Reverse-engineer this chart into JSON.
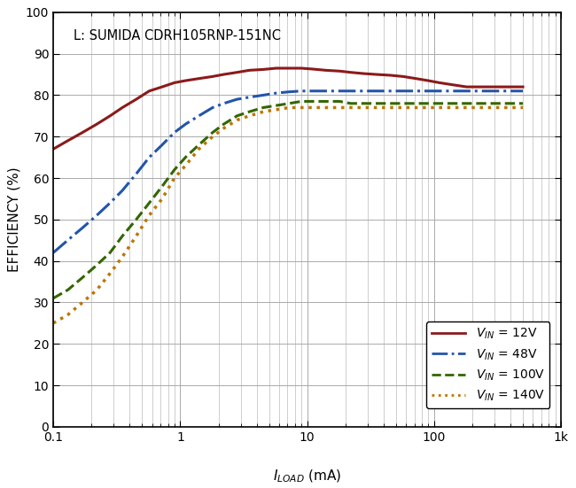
{
  "title_annotation": "L: SUMIDA CDRH105RNP-151NC",
  "ylabel": "EFFICIENCY (%)",
  "xlim": [
    0.1,
    1000
  ],
  "ylim": [
    0,
    100
  ],
  "yticks": [
    0,
    10,
    20,
    30,
    40,
    50,
    60,
    70,
    80,
    90,
    100
  ],
  "xticks_major": [
    0.1,
    1,
    10,
    100,
    1000
  ],
  "xtick_labels": [
    "0.1",
    "1",
    "10",
    "100",
    "1k"
  ],
  "background_color": "#ffffff",
  "grid_color": "#aaaaaa",
  "curves": [
    {
      "label_val": " = 12V",
      "color": "#8B1A1A",
      "linestyle": "-",
      "linewidth": 2.2,
      "x": [
        0.1,
        0.13,
        0.17,
        0.22,
        0.28,
        0.35,
        0.45,
        0.57,
        0.72,
        0.9,
        1.1,
        1.4,
        1.8,
        2.2,
        2.8,
        3.5,
        4.5,
        5.7,
        7.2,
        9,
        11,
        14,
        18,
        22,
        28,
        35,
        45,
        57,
        72,
        90,
        110,
        140,
        180,
        220,
        280,
        350,
        450,
        500
      ],
      "y": [
        67,
        69,
        71,
        73,
        75,
        77,
        79,
        81,
        82,
        83,
        83.5,
        84,
        84.5,
        85,
        85.5,
        86,
        86.2,
        86.5,
        86.5,
        86.5,
        86.3,
        86,
        85.8,
        85.5,
        85.2,
        85,
        84.8,
        84.5,
        84,
        83.5,
        83,
        82.5,
        82,
        82,
        82,
        82,
        82,
        82
      ]
    },
    {
      "label_val": " = 48V",
      "color": "#2255AA",
      "linestyle": "-.",
      "linewidth": 2.2,
      "x": [
        0.1,
        0.13,
        0.17,
        0.22,
        0.28,
        0.35,
        0.45,
        0.57,
        0.72,
        0.9,
        1.1,
        1.4,
        1.8,
        2.2,
        2.8,
        3.5,
        4.5,
        5.7,
        7.2,
        9,
        11,
        14,
        18,
        22,
        28,
        35,
        45,
        57,
        72,
        90,
        110,
        140,
        180,
        220,
        280,
        350,
        450,
        500
      ],
      "y": [
        42,
        45,
        48,
        51,
        54,
        57,
        61,
        65,
        68,
        71,
        73,
        75,
        77,
        78,
        79,
        79.5,
        80,
        80.5,
        80.8,
        81,
        81,
        81,
        81,
        81,
        81,
        81,
        81,
        81,
        81,
        81,
        81,
        81,
        81,
        81,
        81,
        81,
        81,
        81
      ]
    },
    {
      "label_val": " = 100V",
      "color": "#336600",
      "linestyle": "--",
      "linewidth": 2.2,
      "x": [
        0.1,
        0.13,
        0.17,
        0.22,
        0.28,
        0.35,
        0.45,
        0.57,
        0.72,
        0.9,
        1.1,
        1.4,
        1.8,
        2.2,
        2.8,
        3.5,
        4.5,
        5.7,
        7.2,
        9,
        11,
        14,
        18,
        22,
        28,
        35,
        45,
        57,
        72,
        90,
        110,
        140,
        180,
        220,
        280,
        350,
        450,
        500
      ],
      "y": [
        31,
        33,
        36,
        39,
        42,
        46,
        50,
        54,
        58,
        62,
        65,
        68,
        71,
        73,
        75,
        76,
        77,
        77.5,
        78,
        78.5,
        78.5,
        78.5,
        78.5,
        78,
        78,
        78,
        78,
        78,
        78,
        78,
        78,
        78,
        78,
        78,
        78,
        78,
        78,
        78
      ]
    },
    {
      "label_val": " = 140V",
      "color": "#BB7700",
      "linestyle": ":",
      "linewidth": 2.5,
      "x": [
        0.1,
        0.13,
        0.17,
        0.22,
        0.28,
        0.35,
        0.45,
        0.57,
        0.72,
        0.9,
        1.1,
        1.4,
        1.8,
        2.2,
        2.8,
        3.5,
        4.5,
        5.7,
        7.2,
        9,
        11,
        14,
        18,
        22,
        28,
        35,
        45,
        57,
        72,
        90,
        110,
        140,
        180,
        220,
        280,
        350,
        450,
        500
      ],
      "y": [
        25,
        27,
        30,
        33,
        37,
        41,
        46,
        51,
        55,
        60,
        63,
        67,
        70,
        72,
        74,
        75,
        76,
        76.5,
        77,
        77,
        77,
        77,
        77,
        77,
        77,
        77,
        77,
        77,
        77,
        77,
        77,
        77,
        77,
        77,
        77,
        77,
        77,
        77
      ]
    }
  ]
}
